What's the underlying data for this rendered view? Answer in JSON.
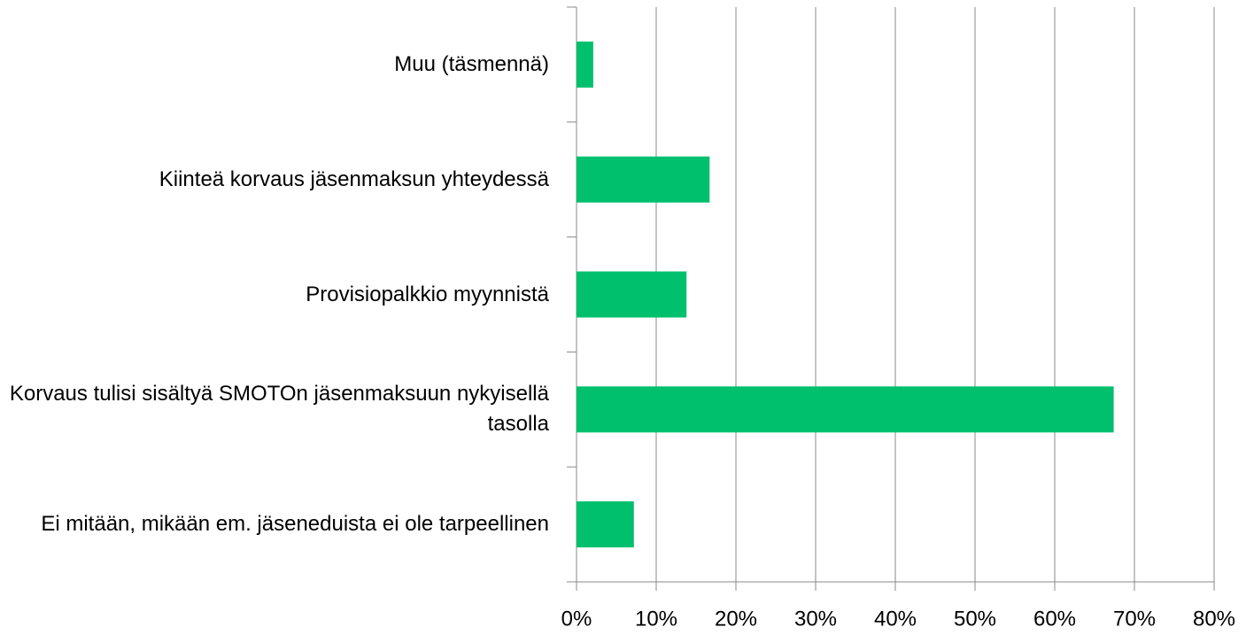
{
  "chart_data": {
    "type": "bar",
    "orientation": "horizontal",
    "categories": [
      "Muu (täsmennä)",
      "Kiinteä korvaus jäsenmaksun yhteydessä",
      "Provisiopalkkio myynnistä",
      "Korvaus tulisi sisältyä SMOTOn jäsenmaksuun nykyisellä tasolla",
      "Ei mitään, mikään em. jäseneduista ei ole tarpeellinen"
    ],
    "values": [
      2.1,
      16.7,
      13.8,
      67.4,
      7.2
    ],
    "color": "#00c06e",
    "xlim": [
      0,
      80
    ],
    "xticks": [
      {
        "value": 0,
        "label": "0%"
      },
      {
        "value": 10,
        "label": "10%"
      },
      {
        "value": 20,
        "label": "20%"
      },
      {
        "value": 30,
        "label": "30%"
      },
      {
        "value": 40,
        "label": "40%"
      },
      {
        "value": 50,
        "label": "50%"
      },
      {
        "value": 60,
        "label": "60%"
      },
      {
        "value": 70,
        "label": "70%"
      },
      {
        "value": 80,
        "label": "80%"
      }
    ],
    "grid": true
  }
}
